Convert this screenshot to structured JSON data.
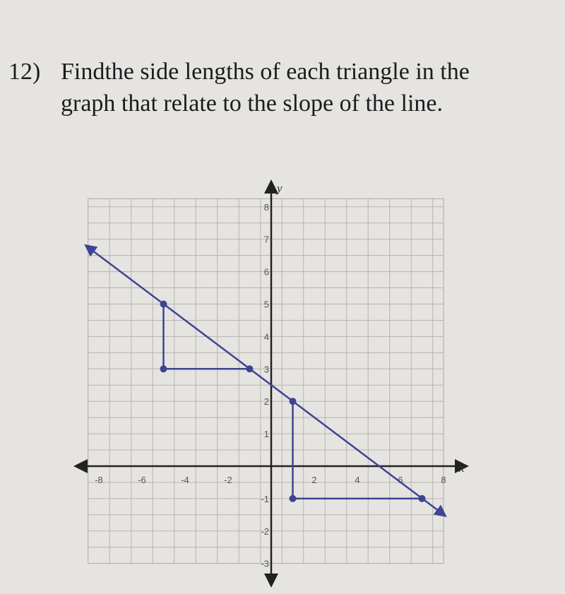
{
  "problem": {
    "number": "12)",
    "lines": [
      "Findthe side lengths of each triangle in the",
      "graph that relate to the slope of the line."
    ]
  },
  "graph": {
    "xlabel": "x",
    "ylabel": "y",
    "xticks": [
      -8,
      -6,
      -4,
      -2,
      2,
      4,
      6,
      8
    ],
    "yticks": [
      -3,
      -2,
      -1,
      1,
      2,
      3,
      4,
      5,
      6,
      7,
      8
    ]
  }
}
